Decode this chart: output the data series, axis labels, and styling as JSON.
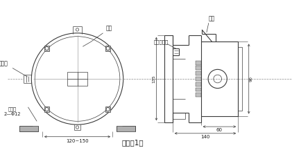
{
  "line_color": "#3a3a3a",
  "text_color": "#1a1a1a",
  "dash_color": "#888888",
  "fill_dark": "#a0a0a0",
  "fill_med": "#c8c8c8",
  "fill_light": "#e8e8e8",
  "caption": "见图（1）",
  "label_shell": "壳体",
  "label_outlet": "出线口",
  "label_mount": "安装孔\n2—Φ12",
  "label_reset": "手动复位钮",
  "label_arm": "摆臂",
  "dim_width": "120~150",
  "dim_140": "140",
  "dim_60": "60",
  "dim_135": "135",
  "dim_90": "90"
}
